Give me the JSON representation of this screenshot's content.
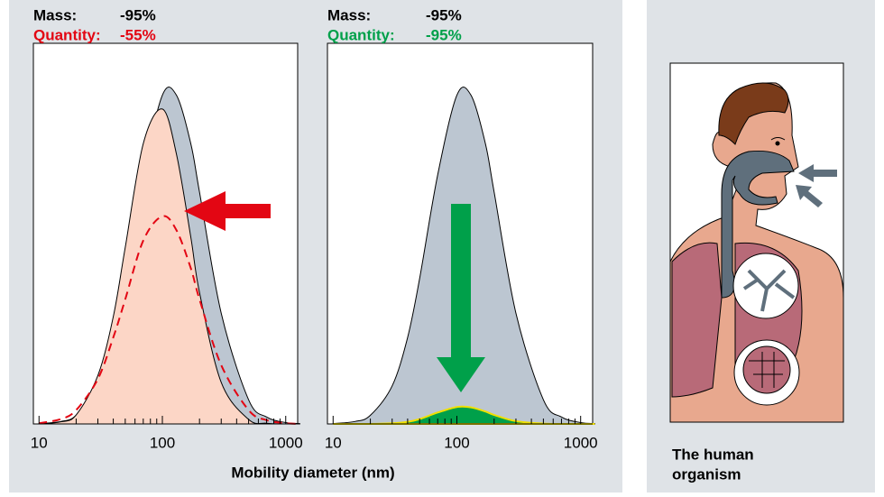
{
  "chart_data": [
    {
      "type": "area",
      "annotations": [
        {
          "label": "Mass:",
          "value": "-95%"
        },
        {
          "label": "Quantity:",
          "value": "-55%",
          "color": "#e30613"
        }
      ],
      "x": [
        10,
        15,
        20,
        30,
        40,
        50,
        70,
        100,
        130,
        170,
        200,
        300,
        500,
        700,
        1000,
        1300
      ],
      "series": [
        {
          "color": "#000000",
          "fill": "#bcc6d1",
          "values": [
            0.001,
            0.007,
            0.025,
            0.11,
            0.25,
            0.42,
            0.72,
            0.95,
            0.95,
            0.81,
            0.67,
            0.32,
            0.07,
            0.02,
            0.004,
            0.001
          ]
        },
        {
          "color": "#000000",
          "fill": "#fcd6c6",
          "values": [
            0,
            0.006,
            0.026,
            0.14,
            0.31,
            0.51,
            0.81,
            0.91,
            0.78,
            0.54,
            0.38,
            0.12,
            0.013,
            0.002,
            0,
            0
          ]
        },
        {
          "color": "#e30613",
          "dash": true,
          "values": [
            0.002,
            0.014,
            0.04,
            0.13,
            0.25,
            0.36,
            0.53,
            0.6,
            0.56,
            0.45,
            0.36,
            0.17,
            0.04,
            0.011,
            0.002,
            0
          ]
        }
      ],
      "xlim": [
        9,
        1250
      ],
      "ylim": [
        0,
        1.1
      ],
      "log_x": true,
      "xticks": [
        10,
        100,
        1000
      ],
      "xminor": [
        20,
        30,
        40,
        50,
        60,
        70,
        80,
        90,
        200,
        300,
        400,
        500,
        600,
        700,
        800,
        900
      ]
    },
    {
      "type": "area",
      "annotations": [
        {
          "label": "Mass:",
          "value": "-95%"
        },
        {
          "label": "Quantity:",
          "value": "-95%",
          "color": "#00a04a"
        }
      ],
      "x": [
        10,
        15,
        20,
        30,
        40,
        50,
        70,
        100,
        130,
        170,
        200,
        300,
        500,
        700,
        1000,
        1300
      ],
      "series": [
        {
          "color": "#000000",
          "fill": "#bcc6d1",
          "values": [
            0.001,
            0.007,
            0.025,
            0.11,
            0.25,
            0.42,
            0.72,
            0.95,
            0.95,
            0.81,
            0.67,
            0.32,
            0.07,
            0.02,
            0.004,
            0.001
          ]
        },
        {
          "color": "#f0e000",
          "fill": "#00a04a",
          "values": [
            0,
            0,
            0,
            0.002,
            0.006,
            0.014,
            0.033,
            0.049,
            0.048,
            0.036,
            0.026,
            0.008,
            0.001,
            0,
            0,
            0
          ]
        }
      ],
      "xlim": [
        9,
        1250
      ],
      "ylim": [
        0,
        1.1
      ],
      "log_x": true,
      "xticks": [
        10,
        100,
        1000
      ],
      "xminor": [
        20,
        30,
        40,
        50,
        60,
        70,
        80,
        90,
        200,
        300,
        400,
        500,
        600,
        700,
        800,
        900
      ]
    }
  ],
  "x_label": "Mobility diameter (nm)",
  "illustration": {
    "caption": [
      "The human",
      "organism"
    ]
  }
}
